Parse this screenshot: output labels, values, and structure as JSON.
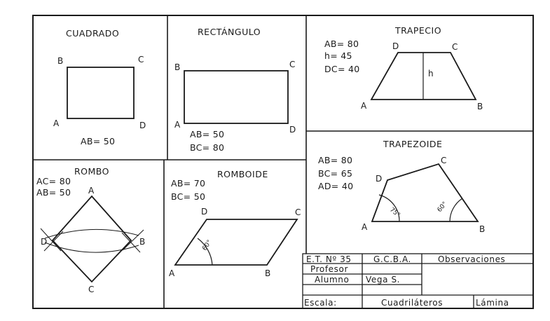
{
  "panels": {
    "cuadrado": {
      "title": "CUADRADO",
      "labels": {
        "a": "A",
        "b": "B",
        "c": "C",
        "d": "D"
      },
      "data": [
        "AB= 50"
      ]
    },
    "rectangulo": {
      "title": "RECTÁNGULO",
      "labels": {
        "a": "A",
        "b": "B",
        "c": "C",
        "d": "D"
      },
      "data": [
        "AB= 50",
        "BC= 80"
      ]
    },
    "trapecio": {
      "title": "TRAPECIO",
      "labels": {
        "a": "A",
        "b": "B",
        "c": "C",
        "d": "D",
        "h": "h"
      },
      "data": [
        "AB= 80",
        "h= 45",
        "DC= 40"
      ]
    },
    "rombo": {
      "title": "ROMBO",
      "labels": {
        "a": "A",
        "b": "B",
        "c": "C",
        "d": "D"
      },
      "data": [
        "AC= 80",
        "AB= 50"
      ]
    },
    "romboide": {
      "title": "ROMBOIDE",
      "labels": {
        "a": "A",
        "b": "B",
        "c": "C",
        "d": "D"
      },
      "angle": "60°",
      "data": [
        "AB= 70",
        "BC= 50"
      ]
    },
    "trapezoide": {
      "title": "TRAPEZOIDE",
      "labels": {
        "a": "A",
        "b": "B",
        "c": "C",
        "d": "D"
      },
      "angle_a": "75°",
      "angle_b": "60°",
      "data": [
        "AB= 80",
        "BC= 65",
        "AD= 40"
      ]
    }
  },
  "title_block": {
    "school": "E.T. Nº 35",
    "gcba": "G.C.B.A.",
    "observaciones": "Observaciones",
    "profesor": "Profesor",
    "alumno": "Alumno",
    "alumno_name": "Vega S.",
    "escala": "Escala:",
    "subject": "Cuadriláteros",
    "lamina": "Lámina"
  }
}
